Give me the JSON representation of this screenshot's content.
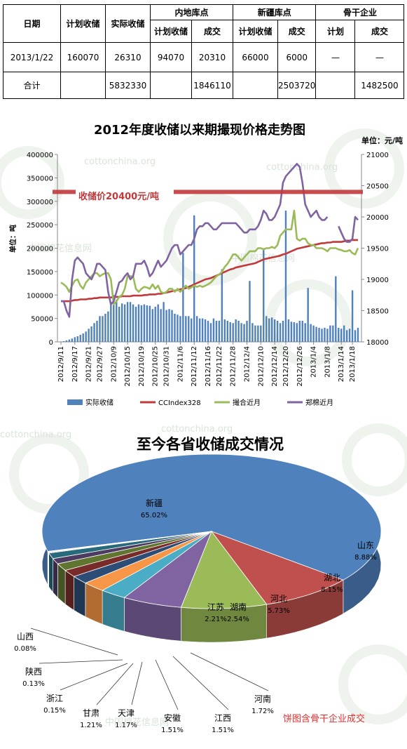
{
  "table": {
    "headers": {
      "date": "日期",
      "planned": "计划收储",
      "actual": "实际收储",
      "inland": "内地库点",
      "xinjiang": "新疆库点",
      "backbone": "骨干企业",
      "sub_planned": "计划收储",
      "sub_deal": "成交",
      "sub_plan_short": "计划"
    },
    "rows": [
      {
        "date": "2013/1/22",
        "planned": "160070",
        "actual": "26310",
        "inland_plan": "94070",
        "inland_deal": "20310",
        "xj_plan": "66000",
        "xj_deal": "6000",
        "bb_plan": "—",
        "bb_deal": "—"
      },
      {
        "date": "合计",
        "planned": "",
        "actual": "5832330",
        "inland_plan": "",
        "inland_deal": "1846110",
        "xj_plan": "",
        "xj_deal": "2503720",
        "bb_plan": "",
        "bb_deal": "1482500"
      }
    ]
  },
  "watermark": "cottonchina.org",
  "watermark_cn": "中国棉花信息网",
  "chart_data": [
    {
      "type": "bar+line",
      "title": "2012年度收储以来期撮现价格走势图",
      "y2_unit": "单位：元/吨",
      "ylabel": "单位：吨",
      "ylim": [
        0,
        400000
      ],
      "y2lim": [
        18000,
        21000
      ],
      "yticks": [
        "0",
        "50000",
        "100000",
        "150000",
        "200000",
        "250000",
        "300000",
        "350000",
        "400000"
      ],
      "y2ticks": [
        "18000",
        "18500",
        "19000",
        "19500",
        "20000",
        "20500",
        "21000"
      ],
      "xticks": [
        "2012/9/11",
        "2012/9/17",
        "2012/9/21",
        "2012/9/27",
        "2012/10/9",
        "2012/10/15",
        "2012/10/19",
        "2012/10/25",
        "2012/10/31",
        "2012/11/6",
        "2012/11/12",
        "2012/11/16",
        "2012/11/22",
        "2012/11/28",
        "2012/12/4",
        "2012/12/10",
        "2012/12/14",
        "2012/12/20",
        "2012/12/26",
        "2013/1/4",
        "2013/1/8",
        "2013/1/14",
        "2013/1/18"
      ],
      "ref_line": {
        "label": "收储价20400元/吨",
        "value": 20400,
        "color": "#c0393b"
      },
      "legend": [
        "实际收储",
        "CCIndex328",
        "撮合近月",
        "郑棉近月"
      ],
      "series": [
        {
          "name": "实际收储",
          "type": "bar",
          "color": "#4f81bd",
          "values": [
            500,
            1500,
            3000,
            5000,
            7000,
            10000,
            12000,
            15000,
            18000,
            22000,
            28000,
            33000,
            40000,
            45000,
            55000,
            55000,
            60000,
            65000,
            80000,
            100000,
            90000,
            75000,
            82000,
            80000,
            85000,
            85000,
            80000,
            75000,
            80000,
            78000,
            80000,
            78000,
            77000,
            70000,
            75000,
            80000,
            70000,
            85000,
            68000,
            70000,
            68000,
            60000,
            58000,
            55000,
            190000,
            55000,
            55000,
            50000,
            270000,
            55000,
            50000,
            50000,
            48000,
            45000,
            40000,
            50000,
            45000,
            45000,
            155000,
            48000,
            45000,
            42000,
            40000,
            48000,
            45000,
            40000,
            38000,
            45000,
            130000,
            40000,
            35000,
            35000,
            35000,
            200000,
            55000,
            50000,
            52000,
            48000,
            45000,
            40000,
            45000,
            280000,
            48000,
            43000,
            42000,
            40000,
            45000,
            45000,
            40000,
            115000,
            38000,
            35000,
            32000,
            30000,
            28000,
            30000,
            28000,
            35000,
            35000,
            140000,
            30000,
            28000,
            35000,
            25000,
            28000,
            110000,
            25000,
            30000
          ]
        },
        {
          "name": "CCIndex328",
          "type": "line",
          "axis": "right",
          "color": "#c0393b",
          "values": [
            18650,
            18650,
            18650,
            18650,
            18660,
            18670,
            18670,
            18680,
            18680,
            18680,
            18690,
            18690,
            18700,
            18700,
            18710,
            18710,
            18710,
            18710,
            18710,
            18720,
            18720,
            18720,
            18730,
            18730,
            18730,
            18730,
            18740,
            18740,
            18740,
            18740,
            18750,
            18750,
            18760,
            18760,
            18760,
            18770,
            18770,
            18780,
            18790,
            18800,
            18810,
            18820,
            18830,
            18840,
            18850,
            18860,
            18880,
            18900,
            18920,
            18940,
            18960,
            18980,
            19000,
            19010,
            19020,
            19040,
            19060,
            19080,
            19100,
            19120,
            19140,
            19160,
            19170,
            19190,
            19200,
            19210,
            19220,
            19230,
            19240,
            19250,
            19260,
            19280,
            19300,
            19320,
            19330,
            19340,
            19350,
            19360,
            19370,
            19380,
            19400,
            19410,
            19430,
            19450,
            19470,
            19490,
            19500,
            19510,
            19520,
            19530,
            19540,
            19550,
            19560,
            19570,
            19580,
            19580,
            19590,
            19590,
            19600,
            19600,
            19600,
            19600,
            19610,
            19620,
            19620,
            19630,
            19630,
            19630
          ]
        },
        {
          "name": "撮合近月",
          "type": "line",
          "axis": "right",
          "color": "#9bbb59",
          "values": [
            18950,
            18920,
            18880,
            18800,
            18900,
            18980,
            19000,
            18900,
            18850,
            18950,
            19000,
            19050,
            19100,
            19100,
            19050,
            19080,
            19100,
            19100,
            19000,
            18600,
            18650,
            18720,
            18750,
            18850,
            19050,
            19050,
            19050,
            18850,
            18800,
            18850,
            18880,
            18870,
            18850,
            18920,
            18850,
            18900,
            18800,
            18780,
            18800,
            18850,
            18850,
            18800,
            18850,
            18800,
            18850,
            18900,
            18850,
            18870,
            18900,
            18880,
            18900,
            18880,
            18900,
            18920,
            18950,
            19000,
            19050,
            19080,
            19120,
            19200,
            19250,
            19320,
            19400,
            19400,
            19350,
            19300,
            19350,
            19400,
            19450,
            19450,
            19450,
            19500,
            19500,
            19480,
            19500,
            19500,
            19520,
            19500,
            19550,
            19700,
            19750,
            19800,
            19800,
            19800,
            20100,
            19650,
            19620,
            19650,
            19650,
            19580,
            19550,
            19550,
            19500,
            19500,
            19500,
            19480,
            19450,
            19500,
            19500,
            19500,
            19480,
            19470,
            19450,
            19450,
            19470,
            19420,
            19400,
            19500
          ]
        },
        {
          "name": "郑棉近月",
          "type": "line",
          "axis": "right",
          "color": "#8064a2",
          "values": [
            18650,
            18650,
            18500,
            18400,
            19000,
            19300,
            19350,
            19300,
            19250,
            19100,
            19050,
            19000,
            19100,
            19250,
            19250,
            19200,
            19150,
            18800,
            18600,
            18650,
            18800,
            18950,
            18980,
            19050,
            19100,
            19000,
            19050,
            19250,
            19250,
            19250,
            19300,
            19200,
            19050,
            19100,
            19200,
            19300,
            19200,
            19250,
            19300,
            19400,
            19500,
            19550,
            19550,
            19400,
            19450,
            19500,
            19550,
            19550,
            19650,
            19800,
            19850,
            19850,
            19900,
            19900,
            19850,
            19800,
            19800,
            19850,
            19900,
            19900,
            19900,
            19900,
            19900,
            19900,
            19850,
            19800,
            19750,
            19750,
            19800,
            19800,
            19800,
            19850,
            19950,
            20100,
            20050,
            19950,
            19950,
            20000,
            20100,
            20200,
            20550,
            20650,
            20700,
            20750,
            20800,
            20850,
            20800,
            20550,
            20200,
            20100,
            20000,
            20050,
            20100,
            20000,
            19950,
            19950,
            20000,
            null,
            null,
            null,
            19850,
            19750,
            19650,
            19600,
            19600,
            19650,
            20000,
            19950
          ]
        }
      ]
    },
    {
      "type": "pie",
      "title": "至今各省收储成交情况",
      "note": "饼图含骨干企业成交",
      "slices": [
        {
          "label": "新疆",
          "value": 65.02,
          "pct": "65.02%",
          "color": "#4f81bd"
        },
        {
          "label": "山东",
          "value": 8.88,
          "pct": "8.88%",
          "color": "#c0504d"
        },
        {
          "label": "湖北",
          "value": 8.15,
          "pct": "8.15%",
          "color": "#9bbb59"
        },
        {
          "label": "河北",
          "value": 5.73,
          "pct": "5.73%",
          "color": "#8064a2"
        },
        {
          "label": "湖南",
          "value": 2.54,
          "pct": "2.54%",
          "color": "#4bacc6"
        },
        {
          "label": "江苏",
          "value": 2.21,
          "pct": "2.21%",
          "color": "#f79646"
        },
        {
          "label": "河南",
          "value": 1.72,
          "pct": "1.72%",
          "color": "#2c4d75"
        },
        {
          "label": "江西",
          "value": 1.51,
          "pct": "1.51%",
          "color": "#772c2a"
        },
        {
          "label": "安徽",
          "value": 1.51,
          "pct": "1.51%",
          "color": "#5f7530"
        },
        {
          "label": "天津",
          "value": 1.17,
          "pct": "1.17%",
          "color": "#4d3b62"
        },
        {
          "label": "甘肃",
          "value": 1.21,
          "pct": "1.21%",
          "color": "#276a7c"
        },
        {
          "label": "浙江",
          "value": 0.15,
          "pct": "0.15%",
          "color": "#b65708"
        },
        {
          "label": "陕西",
          "value": 0.13,
          "pct": "0.13%",
          "color": "#729aca"
        },
        {
          "label": "山西",
          "value": 0.08,
          "pct": "0.08%",
          "color": "#d07c7a"
        }
      ]
    }
  ]
}
